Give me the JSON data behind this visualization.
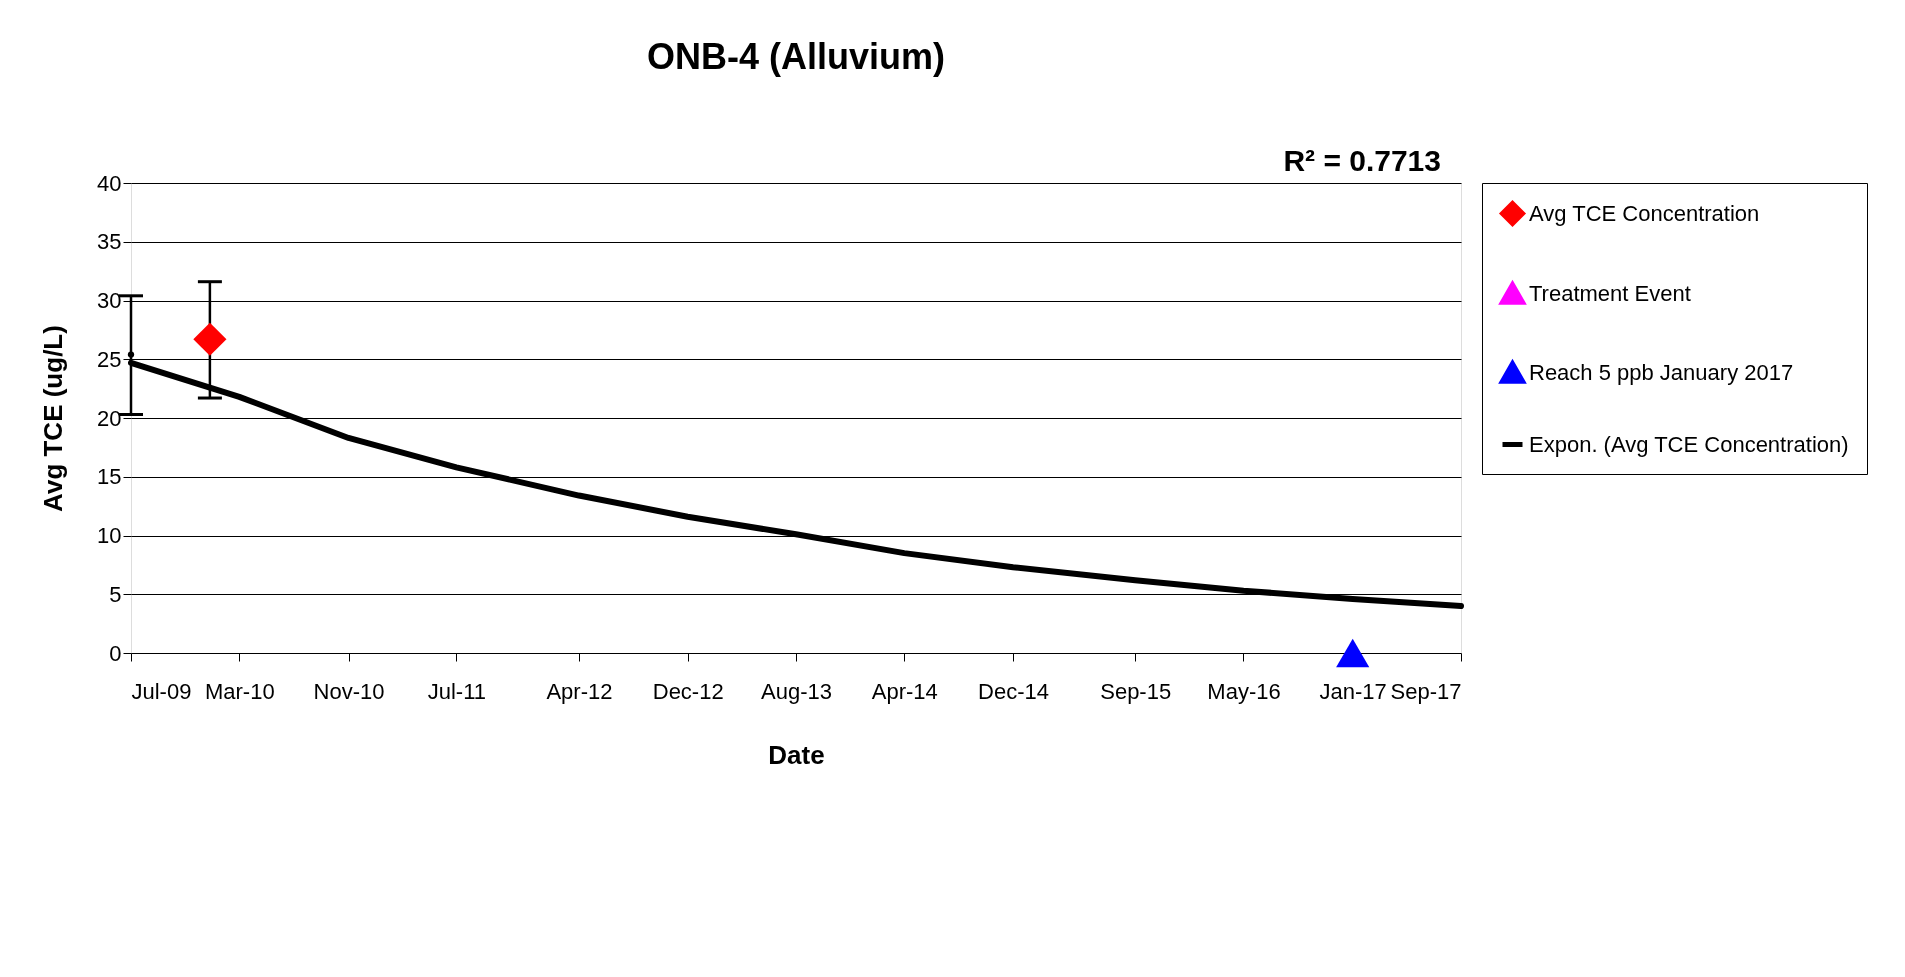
{
  "chart_data": {
    "type": "scatter",
    "title": "ONB-4 (Alluvium)",
    "xlabel": "Date",
    "ylabel": "Avg TCE  (ug/L)",
    "xlim": [
      "2009-07-01",
      "2017-09-01"
    ],
    "xticks": [
      {
        "value": "2009-07-01",
        "label": "Jul-09"
      },
      {
        "value": "2010-03-01",
        "label": "Mar-10"
      },
      {
        "value": "2010-11-01",
        "label": "Nov-10"
      },
      {
        "value": "2011-07-01",
        "label": "Jul-11"
      },
      {
        "value": "2012-04-01",
        "label": "Apr-12"
      },
      {
        "value": "2012-12-01",
        "label": "Dec-12"
      },
      {
        "value": "2013-08-01",
        "label": "Aug-13"
      },
      {
        "value": "2014-04-01",
        "label": "Apr-14"
      },
      {
        "value": "2014-12-01",
        "label": "Dec-14"
      },
      {
        "value": "2015-09-01",
        "label": "Sep-15"
      },
      {
        "value": "2016-05-01",
        "label": "May-16"
      },
      {
        "value": "2017-01-01",
        "label": "Jan-17"
      },
      {
        "value": "2017-09-01",
        "label": "Sep-17"
      }
    ],
    "ylim": [
      0,
      40
    ],
    "yticks": [
      0,
      5,
      10,
      15,
      20,
      25,
      30,
      35,
      40
    ],
    "grid": "y",
    "legend": "right",
    "line_style": "solid",
    "annotations": [
      "R² = 0.7713"
    ],
    "series": [
      {
        "name": "Avg TCE Concentration",
        "marker": "diamond",
        "color": "#ff0000",
        "x": [
          "2009-12-25"
        ],
        "values": [
          26.7
        ],
        "errors": [
          [
            21.7,
            31.6
          ]
        ]
      },
      {
        "marker": "circle",
        "color": "#000000",
        "x": [
          "2009-07-01"
        ],
        "values": [
          25.4
        ],
        "errors": [
          [
            20.3,
            30.4
          ]
        ]
      },
      {
        "name": "Treatment Event",
        "marker": "triangle",
        "color": "#ff00ff"
      },
      {
        "name": "Reach 5 ppb January 2017",
        "marker": "triangle",
        "color": "#0000ff",
        "x": [
          "2017-01-01"
        ],
        "values": [
          0
        ]
      },
      {
        "name": "Expon. (Avg TCE Concentration)",
        "type": "line",
        "color": "#000000",
        "x": [
          "2009-07-01",
          "2010-03-01",
          "2010-11-01",
          "2011-07-01",
          "2012-04-01",
          "2012-12-01",
          "2013-08-01",
          "2014-04-01",
          "2014-12-01",
          "2015-09-01",
          "2016-05-01",
          "2017-01-01",
          "2017-09-01"
        ],
        "values": [
          24.7,
          21.8,
          18.3,
          15.8,
          13.4,
          11.6,
          10.1,
          8.5,
          7.3,
          6.2,
          5.3,
          4.6,
          4.0
        ]
      }
    ]
  }
}
